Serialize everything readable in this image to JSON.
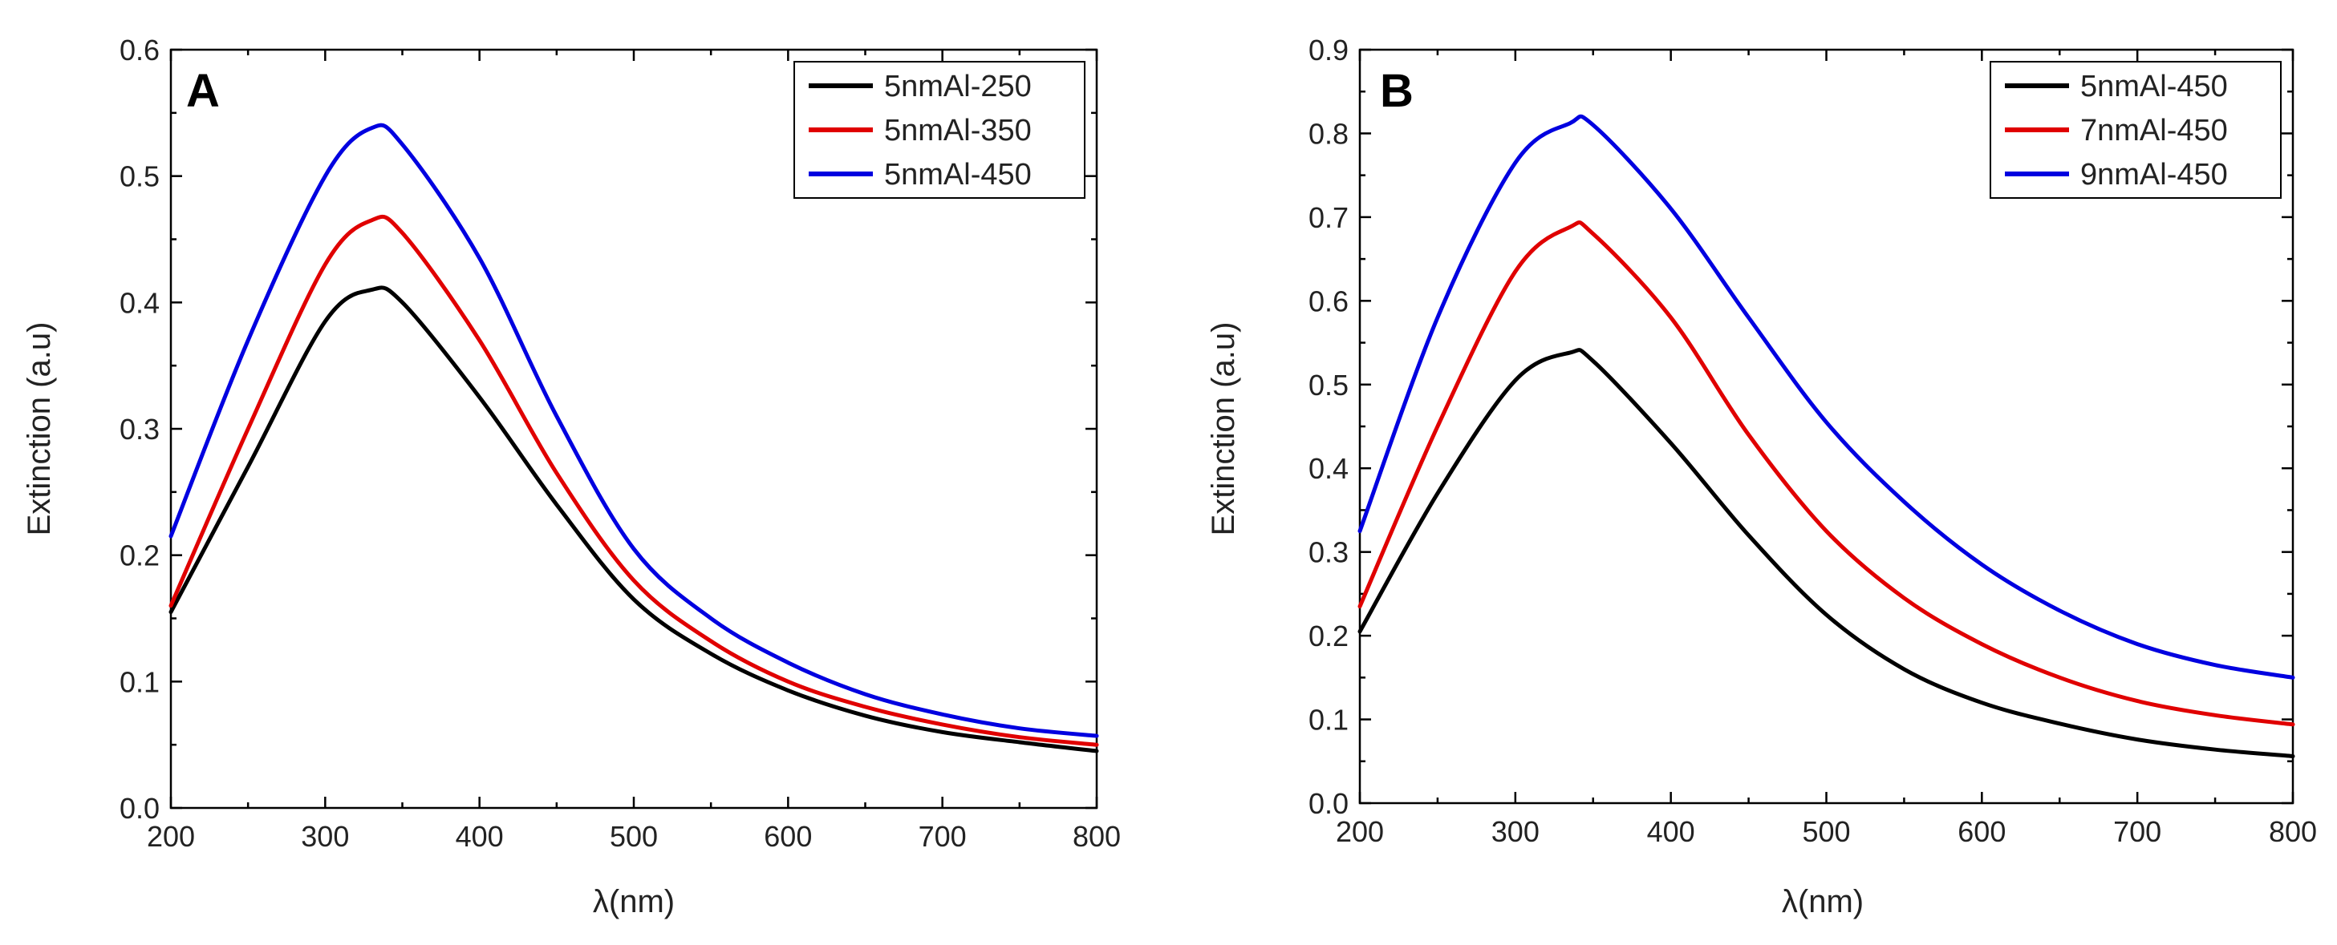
{
  "chart_data": [
    {
      "type": "line",
      "panel_label": "A",
      "xlabel": "λ(nm)",
      "ylabel": "Extinction (a.u)",
      "xlim": [
        200,
        800
      ],
      "ylim": [
        0.0,
        0.6
      ],
      "xticks": [
        200,
        300,
        400,
        500,
        600,
        700,
        800
      ],
      "yticks": [
        0.0,
        0.1,
        0.2,
        0.3,
        0.4,
        0.5,
        0.6
      ],
      "ytick_labels": [
        "0.0",
        "0.1",
        "0.2",
        "0.3",
        "0.4",
        "0.5",
        "0.6"
      ],
      "legend_position": "top-right",
      "x": [
        200,
        250,
        300,
        330,
        350,
        400,
        450,
        500,
        550,
        600,
        650,
        700,
        750,
        800
      ],
      "series": [
        {
          "name": "5nmAl-250",
          "color": "#000000",
          "values": [
            0.155,
            0.27,
            0.385,
            0.41,
            0.4,
            0.325,
            0.24,
            0.165,
            0.122,
            0.093,
            0.073,
            0.06,
            0.052,
            0.045
          ]
        },
        {
          "name": "5nmAl-350",
          "color": "#e00000",
          "values": [
            0.16,
            0.3,
            0.43,
            0.465,
            0.455,
            0.37,
            0.265,
            0.18,
            0.132,
            0.1,
            0.08,
            0.066,
            0.056,
            0.05
          ]
        },
        {
          "name": "5nmAl-450",
          "color": "#0000e0",
          "values": [
            0.215,
            0.37,
            0.5,
            0.538,
            0.525,
            0.435,
            0.31,
            0.205,
            0.15,
            0.115,
            0.09,
            0.074,
            0.063,
            0.057
          ]
        }
      ]
    },
    {
      "type": "line",
      "panel_label": "B",
      "xlabel": "λ(nm)",
      "ylabel": "Extinction (a.u)",
      "xlim": [
        200,
        800
      ],
      "ylim": [
        0.0,
        0.9
      ],
      "xticks": [
        200,
        300,
        400,
        500,
        600,
        700,
        800
      ],
      "yticks": [
        0.0,
        0.1,
        0.2,
        0.3,
        0.4,
        0.5,
        0.6,
        0.7,
        0.8,
        0.9
      ],
      "ytick_labels": [
        "0.0",
        "0.1",
        "0.2",
        "0.3",
        "0.4",
        "0.5",
        "0.6",
        "0.7",
        "0.8",
        "0.9"
      ],
      "legend_position": "top-right",
      "x": [
        200,
        250,
        300,
        335,
        350,
        400,
        450,
        500,
        550,
        600,
        650,
        700,
        750,
        800
      ],
      "series": [
        {
          "name": "5nmAl-450",
          "color": "#000000",
          "values": [
            0.205,
            0.37,
            0.505,
            0.538,
            0.528,
            0.43,
            0.32,
            0.225,
            0.16,
            0.12,
            0.095,
            0.076,
            0.064,
            0.056
          ]
        },
        {
          "name": "7nmAl-450",
          "color": "#e00000",
          "values": [
            0.235,
            0.45,
            0.635,
            0.688,
            0.68,
            0.58,
            0.44,
            0.325,
            0.245,
            0.19,
            0.15,
            0.122,
            0.105,
            0.094
          ]
        },
        {
          "name": "9nmAl-450",
          "color": "#0000e0",
          "values": [
            0.325,
            0.58,
            0.765,
            0.812,
            0.81,
            0.71,
            0.58,
            0.455,
            0.36,
            0.285,
            0.23,
            0.19,
            0.165,
            0.15
          ]
        }
      ]
    }
  ]
}
